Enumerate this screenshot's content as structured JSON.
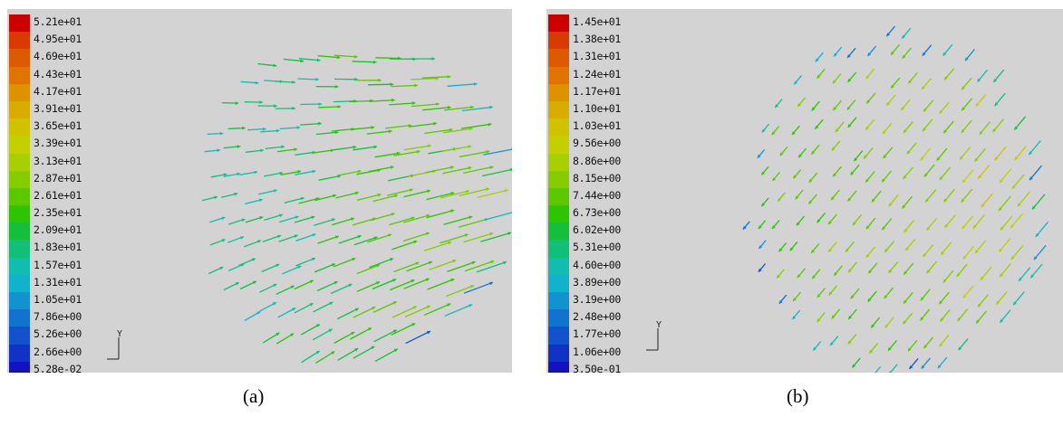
{
  "figures": [
    {
      "id": "a",
      "caption": "(a)",
      "colorbar": [
        "5.21e+01",
        "4.95e+01",
        "4.69e+01",
        "4.43e+01",
        "4.17e+01",
        "3.91e+01",
        "3.65e+01",
        "3.39e+01",
        "3.13e+01",
        "2.87e+01",
        "2.61e+01",
        "2.35e+01",
        "2.09e+01",
        "1.83e+01",
        "1.57e+01",
        "1.31e+01",
        "1.05e+01",
        "7.86e+00",
        "5.26e+00",
        "2.66e+00",
        "5.28e-02"
      ],
      "axis_label": "Y"
    },
    {
      "id": "b",
      "caption": "(b)",
      "colorbar": [
        "1.45e+01",
        "1.38e+01",
        "1.31e+01",
        "1.24e+01",
        "1.17e+01",
        "1.10e+01",
        "1.03e+01",
        "9.56e+00",
        "8.86e+00",
        "8.15e+00",
        "7.44e+00",
        "6.73e+00",
        "6.02e+00",
        "5.31e+00",
        "4.60e+00",
        "3.89e+00",
        "3.19e+00",
        "2.48e+00",
        "1.77e+00",
        "1.06e+00",
        "3.50e-01"
      ],
      "axis_label": "Y"
    }
  ],
  "colors": [
    "#cc0000",
    "#d93a00",
    "#dd5a00",
    "#df7500",
    "#dd9200",
    "#d9ac00",
    "#cfc200",
    "#c3cf00",
    "#a8d000",
    "#86cc00",
    "#5bc800",
    "#2ec400",
    "#14c03a",
    "#12bf78",
    "#12bcae",
    "#12b2cc",
    "#1293cf",
    "#1273cf",
    "#1252cc",
    "#1232c6",
    "#1212bf"
  ]
}
